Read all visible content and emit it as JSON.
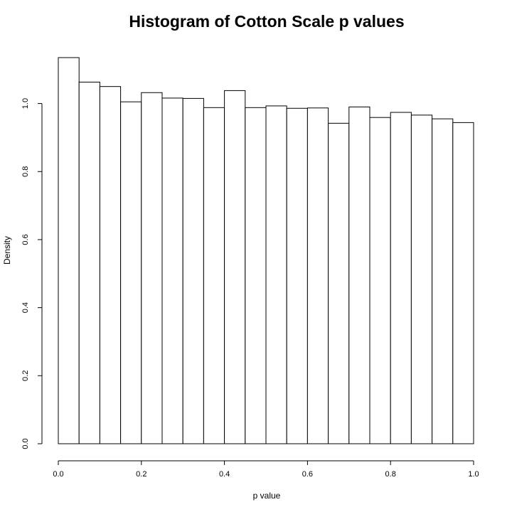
{
  "chart_data": {
    "type": "bar",
    "title": "Histogram of Cotton Scale p values",
    "xlabel": "p value",
    "ylabel": "Density",
    "bin_edges": [
      0.0,
      0.05,
      0.1,
      0.15,
      0.2,
      0.25,
      0.3,
      0.35,
      0.4,
      0.45,
      0.5,
      0.55,
      0.6,
      0.65,
      0.7,
      0.75,
      0.8,
      0.85,
      0.9,
      0.95,
      1.0
    ],
    "values": [
      1.135,
      1.063,
      1.05,
      1.005,
      1.032,
      1.016,
      1.015,
      0.988,
      1.038,
      0.988,
      0.993,
      0.986,
      0.987,
      0.942,
      0.99,
      0.959,
      0.974,
      0.966,
      0.955,
      0.944
    ],
    "xlim": [
      0.0,
      1.0
    ],
    "ylim": [
      0.0,
      1.135
    ],
    "xticks": [
      "0.0",
      "0.2",
      "0.4",
      "0.6",
      "0.8",
      "1.0"
    ],
    "yticks": [
      "0.0",
      "0.2",
      "0.4",
      "0.6",
      "0.8",
      "1.0"
    ],
    "grid": false
  }
}
